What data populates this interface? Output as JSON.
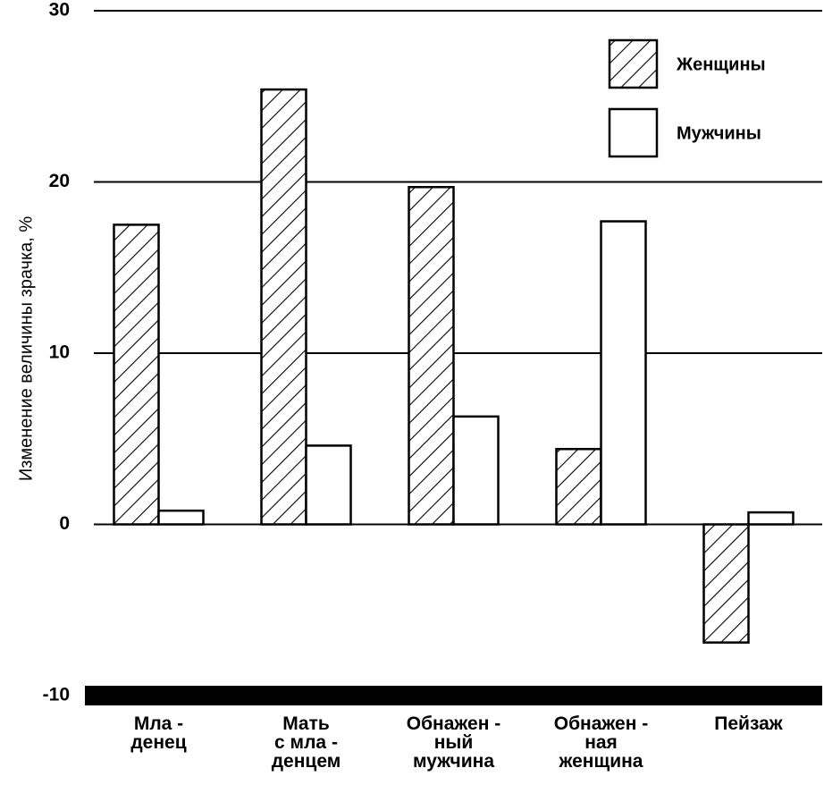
{
  "chart_data": {
    "type": "bar",
    "y_label": "Изменение величины зрачка, %",
    "categories": [
      "Мла -\nденец",
      "Мать\nс мла -\nденцем",
      "Обнажен -\nный\nмужчина",
      "Обнажен -\nная\nженщина",
      "Пейзаж"
    ],
    "series": [
      {
        "name": "Женщины",
        "color": "#ffffff",
        "pattern": "hatch",
        "values": [
          17.5,
          25.4,
          19.7,
          4.4,
          -6.9
        ]
      },
      {
        "name": "Мужчины",
        "color": "#ffffff",
        "pattern": "none",
        "values": [
          0.8,
          4.6,
          6.3,
          17.7,
          0.7
        ]
      }
    ],
    "ylim": [
      -10,
      30
    ],
    "yticks": [
      -10,
      0,
      10,
      20,
      30
    ],
    "grid": true,
    "legend": "upper right"
  }
}
